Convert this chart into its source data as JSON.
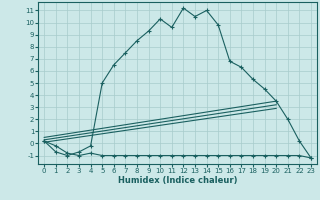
{
  "xlabel": "Humidex (Indice chaleur)",
  "bg_color": "#cce8e8",
  "grid_color": "#a8cccc",
  "line_color": "#1a6060",
  "xlim": [
    -0.5,
    23.5
  ],
  "ylim": [
    -1.7,
    11.7
  ],
  "xticks": [
    0,
    1,
    2,
    3,
    4,
    5,
    6,
    7,
    8,
    9,
    10,
    11,
    12,
    13,
    14,
    15,
    16,
    17,
    18,
    19,
    20,
    21,
    22,
    23
  ],
  "yticks": [
    -1,
    0,
    1,
    2,
    3,
    4,
    5,
    6,
    7,
    8,
    9,
    10,
    11
  ],
  "curve1_x": [
    0,
    1,
    2,
    3,
    4,
    5,
    6,
    7,
    8,
    9,
    10,
    11,
    12,
    13,
    14,
    15,
    16,
    17,
    18,
    19,
    20,
    21,
    22,
    23
  ],
  "curve1_y": [
    0.2,
    -0.7,
    -1.0,
    -0.7,
    -0.2,
    5.0,
    6.5,
    7.5,
    8.5,
    9.3,
    10.3,
    9.6,
    11.2,
    10.5,
    11.0,
    9.8,
    6.8,
    6.3,
    5.3,
    4.5,
    3.5,
    2.0,
    0.2,
    -1.2
  ],
  "curve2_x": [
    0,
    1,
    2,
    3,
    4,
    5,
    6,
    7,
    8,
    9,
    10,
    11,
    12,
    13,
    14,
    15,
    16,
    17,
    18,
    19,
    20,
    21,
    22,
    23
  ],
  "curve2_y": [
    0.2,
    -0.2,
    -0.8,
    -1.0,
    -0.8,
    -1.0,
    -1.0,
    -1.0,
    -1.0,
    -1.0,
    -1.0,
    -1.0,
    -1.0,
    -1.0,
    -1.0,
    -1.0,
    -1.0,
    -1.0,
    -1.0,
    -1.0,
    -1.0,
    -1.0,
    -1.0,
    -1.2
  ],
  "line1_x": [
    0,
    20
  ],
  "line1_y": [
    0.5,
    3.5
  ],
  "line2_x": [
    0,
    20
  ],
  "line2_y": [
    0.3,
    3.2
  ],
  "line3_x": [
    0,
    20
  ],
  "line3_y": [
    0.1,
    2.9
  ],
  "xlabel_fontsize": 6.0,
  "tick_fontsize": 5.0
}
